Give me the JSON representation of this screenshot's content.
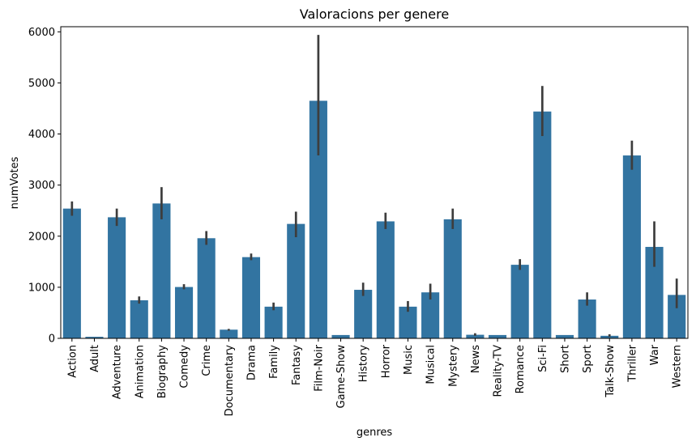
{
  "chart_data": {
    "type": "bar",
    "title": "Valoracions per genere",
    "xlabel": "genres",
    "ylabel": "numVotes",
    "ylim": [
      0,
      6100
    ],
    "yticks": [
      0,
      1000,
      2000,
      3000,
      4000,
      5000,
      6000
    ],
    "grid": false,
    "bar_color": "#3274a1",
    "errorbar_color": "#3d3d3d",
    "categories": [
      "Action",
      "Adult",
      "Adventure",
      "Animation",
      "Biography",
      "Comedy",
      "Crime",
      "Documentary",
      "Drama",
      "Family",
      "Fantasy",
      "Film-Noir",
      "Game-Show",
      "History",
      "Horror",
      "Music",
      "Musical",
      "Mystery",
      "News",
      "Reality-TV",
      "Romance",
      "Sci-Fi",
      "Short",
      "Sport",
      "Talk-Show",
      "Thriller",
      "War",
      "Western"
    ],
    "values": [
      2540,
      30,
      2370,
      745,
      2640,
      1005,
      1960,
      170,
      1590,
      620,
      2240,
      4650,
      65,
      950,
      2290,
      620,
      900,
      2330,
      70,
      65,
      1440,
      4440,
      65,
      760,
      50,
      3580,
      1790,
      850
    ],
    "ci_low": [
      2400,
      30,
      2200,
      680,
      2330,
      960,
      1830,
      150,
      1530,
      550,
      1980,
      3580,
      65,
      830,
      2140,
      520,
      760,
      2140,
      50,
      65,
      1340,
      3960,
      65,
      640,
      30,
      3300,
      1400,
      590
    ],
    "ci_high": [
      2680,
      30,
      2540,
      820,
      2960,
      1060,
      2100,
      185,
      1660,
      700,
      2480,
      5940,
      65,
      1090,
      2460,
      730,
      1070,
      2540,
      100,
      65,
      1550,
      4940,
      65,
      900,
      80,
      3870,
      2290,
      1170
    ]
  }
}
